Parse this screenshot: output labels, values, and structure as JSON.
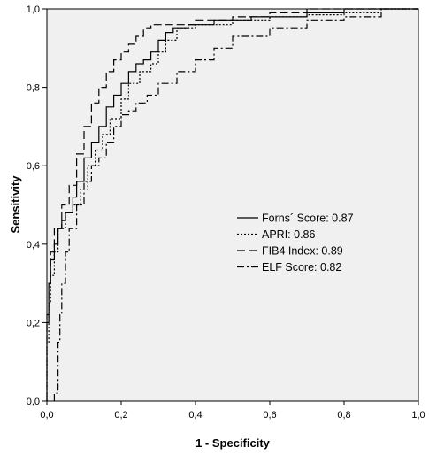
{
  "chart_data": {
    "type": "line",
    "xlabel": "1 - Specificity",
    "ylabel": "Sensitivity",
    "xlim": [
      0,
      1
    ],
    "ylim": [
      0,
      1
    ],
    "xticks": [
      0,
      0.2,
      0.4,
      0.6,
      0.8,
      1.0
    ],
    "yticks": [
      0,
      0.2,
      0.4,
      0.6,
      0.8,
      1.0
    ],
    "xtick_labels": [
      "0,0",
      "0,2",
      "0,4",
      "0,6",
      "0,8",
      "1,0"
    ],
    "ytick_labels": [
      "0,0",
      "0,2",
      "0,4",
      "0,6",
      "0,8",
      "1,0"
    ],
    "grid": false,
    "legend_position": "center-right",
    "background_color": "#f0f0f0",
    "series": [
      {
        "name": "Forns´ Score: 0.87",
        "dash": "solid",
        "points": [
          [
            0,
            0
          ],
          [
            0,
            0.1
          ],
          [
            0.005,
            0.2
          ],
          [
            0.01,
            0.3
          ],
          [
            0.02,
            0.36
          ],
          [
            0.03,
            0.4
          ],
          [
            0.04,
            0.44
          ],
          [
            0.05,
            0.46
          ],
          [
            0.07,
            0.48
          ],
          [
            0.08,
            0.52
          ],
          [
            0.1,
            0.56
          ],
          [
            0.12,
            0.62
          ],
          [
            0.14,
            0.66
          ],
          [
            0.16,
            0.7
          ],
          [
            0.18,
            0.75
          ],
          [
            0.2,
            0.78
          ],
          [
            0.22,
            0.81
          ],
          [
            0.24,
            0.84
          ],
          [
            0.26,
            0.86
          ],
          [
            0.28,
            0.87
          ],
          [
            0.3,
            0.89
          ],
          [
            0.32,
            0.92
          ],
          [
            0.34,
            0.94
          ],
          [
            0.38,
            0.95
          ],
          [
            0.45,
            0.96
          ],
          [
            0.55,
            0.97
          ],
          [
            0.6,
            0.98
          ],
          [
            0.7,
            0.98
          ],
          [
            0.8,
            0.99
          ],
          [
            0.9,
            1.0
          ],
          [
            1.0,
            1.0
          ]
        ]
      },
      {
        "name": "APRI: 0.86",
        "dash": "dotted",
        "points": [
          [
            0,
            0
          ],
          [
            0.005,
            0.15
          ],
          [
            0.01,
            0.25
          ],
          [
            0.02,
            0.32
          ],
          [
            0.03,
            0.38
          ],
          [
            0.05,
            0.44
          ],
          [
            0.07,
            0.48
          ],
          [
            0.09,
            0.5
          ],
          [
            0.11,
            0.54
          ],
          [
            0.13,
            0.6
          ],
          [
            0.15,
            0.64
          ],
          [
            0.17,
            0.68
          ],
          [
            0.2,
            0.72
          ],
          [
            0.22,
            0.77
          ],
          [
            0.25,
            0.81
          ],
          [
            0.28,
            0.84
          ],
          [
            0.3,
            0.86
          ],
          [
            0.32,
            0.89
          ],
          [
            0.35,
            0.92
          ],
          [
            0.4,
            0.95
          ],
          [
            0.5,
            0.96
          ],
          [
            0.6,
            0.97
          ],
          [
            0.7,
            0.98
          ],
          [
            0.8,
            0.985
          ],
          [
            0.9,
            0.99
          ],
          [
            1.0,
            1.0
          ]
        ]
      },
      {
        "name": "FIB4 Index: 0.89",
        "dash": "long-dash",
        "points": [
          [
            0,
            0
          ],
          [
            0,
            0.12
          ],
          [
            0.005,
            0.22
          ],
          [
            0.01,
            0.3
          ],
          [
            0.02,
            0.38
          ],
          [
            0.04,
            0.44
          ],
          [
            0.06,
            0.5
          ],
          [
            0.08,
            0.55
          ],
          [
            0.1,
            0.63
          ],
          [
            0.12,
            0.7
          ],
          [
            0.14,
            0.76
          ],
          [
            0.16,
            0.8
          ],
          [
            0.18,
            0.84
          ],
          [
            0.2,
            0.87
          ],
          [
            0.22,
            0.89
          ],
          [
            0.24,
            0.91
          ],
          [
            0.26,
            0.93
          ],
          [
            0.28,
            0.95
          ],
          [
            0.3,
            0.96
          ],
          [
            0.4,
            0.96
          ],
          [
            0.5,
            0.97
          ],
          [
            0.6,
            0.98
          ],
          [
            0.7,
            0.99
          ],
          [
            0.8,
            1.0
          ],
          [
            1.0,
            1.0
          ]
        ]
      },
      {
        "name": "ELF Score: 0.82",
        "dash": "dash-dot",
        "points": [
          [
            0.02,
            0
          ],
          [
            0.03,
            0.02
          ],
          [
            0.03,
            0.08
          ],
          [
            0.035,
            0.15
          ],
          [
            0.04,
            0.22
          ],
          [
            0.05,
            0.3
          ],
          [
            0.06,
            0.38
          ],
          [
            0.08,
            0.44
          ],
          [
            0.1,
            0.5
          ],
          [
            0.12,
            0.56
          ],
          [
            0.14,
            0.6
          ],
          [
            0.16,
            0.62
          ],
          [
            0.18,
            0.66
          ],
          [
            0.2,
            0.7
          ],
          [
            0.22,
            0.73
          ],
          [
            0.24,
            0.74
          ],
          [
            0.27,
            0.76
          ],
          [
            0.3,
            0.78
          ],
          [
            0.35,
            0.81
          ],
          [
            0.4,
            0.84
          ],
          [
            0.45,
            0.87
          ],
          [
            0.5,
            0.9
          ],
          [
            0.6,
            0.93
          ],
          [
            0.7,
            0.95
          ],
          [
            0.8,
            0.97
          ],
          [
            0.9,
            0.98
          ],
          [
            1.0,
            1.0
          ]
        ]
      }
    ]
  }
}
